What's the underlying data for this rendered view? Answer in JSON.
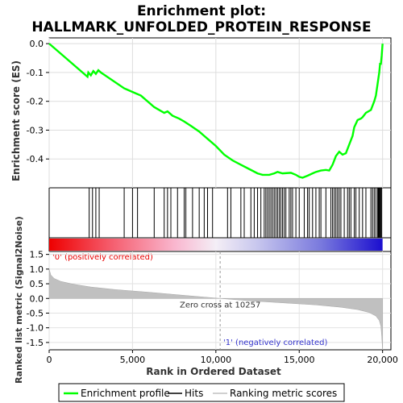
{
  "chart_data": {
    "type": "line",
    "title_line1": "Enrichment plot:",
    "title_line2": "HALLMARK_UNFOLDED_PROTEIN_RESPONSE",
    "top_panel": {
      "ylabel": "Enrichment score (ES)",
      "ylim": [
        -0.5,
        0.02
      ],
      "yticks": [
        0.0,
        -0.1,
        -0.2,
        -0.3,
        -0.4
      ],
      "ytick_labels": [
        "0.0",
        "-0.1",
        "-0.2",
        "-0.3",
        "-0.4"
      ],
      "series_name": "Enrichment profile",
      "color": "#00ff00",
      "x": [
        0,
        2300,
        2350,
        2500,
        2650,
        2800,
        2950,
        3100,
        4500,
        4700,
        5100,
        5500,
        6300,
        6900,
        7100,
        7400,
        7800,
        8100,
        8500,
        9000,
        9500,
        10000,
        10500,
        11000,
        11500,
        12000,
        12500,
        12800,
        13200,
        13500,
        13700,
        14000,
        14500,
        14800,
        15000,
        15200,
        15500,
        15800,
        16000,
        16300,
        16600,
        16800,
        17000,
        17200,
        17400,
        17600,
        17800,
        18000,
        18200,
        18300,
        18500,
        18700,
        18800,
        19000,
        19300,
        19500,
        19600,
        19700,
        19800,
        19850,
        19900,
        19950,
        20000
      ],
      "y": [
        0.0,
        -0.115,
        -0.1,
        -0.11,
        -0.095,
        -0.105,
        -0.092,
        -0.1,
        -0.155,
        -0.16,
        -0.17,
        -0.18,
        -0.22,
        -0.24,
        -0.235,
        -0.25,
        -0.26,
        -0.27,
        -0.285,
        -0.305,
        -0.33,
        -0.355,
        -0.385,
        -0.405,
        -0.42,
        -0.435,
        -0.45,
        -0.455,
        -0.455,
        -0.45,
        -0.445,
        -0.45,
        -0.448,
        -0.455,
        -0.462,
        -0.465,
        -0.458,
        -0.45,
        -0.445,
        -0.44,
        -0.438,
        -0.44,
        -0.42,
        -0.39,
        -0.375,
        -0.385,
        -0.38,
        -0.35,
        -0.32,
        -0.29,
        -0.265,
        -0.26,
        -0.255,
        -0.24,
        -0.23,
        -0.2,
        -0.18,
        -0.14,
        -0.1,
        -0.07,
        -0.07,
        -0.04,
        0.0
      ]
    },
    "hits": [
      2400,
      2600,
      2800,
      3000,
      4500,
      5000,
      5300,
      6300,
      6900,
      7100,
      7300,
      7700,
      8100,
      8200,
      8600,
      9000,
      9300,
      9500,
      9800,
      10700,
      10900,
      11500,
      11700,
      12100,
      12300,
      12500,
      12700,
      12900,
      13000,
      13100,
      13200,
      13300,
      13400,
      13500,
      13600,
      13700,
      13800,
      13900,
      14000,
      14100,
      14200,
      14400,
      14500,
      14600,
      14800,
      15000,
      15300,
      15500,
      15600,
      15800,
      16000,
      16200,
      16300,
      16600,
      16900,
      17000,
      17100,
      17200,
      17300,
      17400,
      17500,
      17700,
      17900,
      18000,
      18100,
      18300,
      18400,
      18600,
      18800,
      19000,
      19300,
      19400,
      19500,
      19600,
      19700,
      19750,
      19800,
      19850,
      19900,
      19950
    ],
    "bottom_panel": {
      "ylabel": "Ranked list metric (Signal2Noise)",
      "ylim": [
        -1.75,
        1.6
      ],
      "yticks": [
        1.5,
        1.0,
        0.5,
        0.0,
        -0.5,
        -1.0,
        -1.5
      ],
      "ytick_labels": [
        "1.5",
        "1.0",
        "0.5",
        "0.0",
        "-0.5",
        "-1.0",
        "-1.5"
      ],
      "series_name": "Ranking metric scores",
      "color": "#c0c0c0",
      "x": [
        0,
        100,
        300,
        700,
        1500,
        2500,
        4000,
        6000,
        8000,
        10257,
        12000,
        14000,
        16000,
        17500,
        18500,
        19200,
        19600,
        19800,
        19900,
        19950,
        20000
      ],
      "y": [
        1.0,
        0.8,
        0.68,
        0.58,
        0.48,
        0.39,
        0.3,
        0.21,
        0.11,
        0.0,
        -0.08,
        -0.15,
        -0.22,
        -0.3,
        -0.38,
        -0.48,
        -0.6,
        -0.75,
        -0.95,
        -1.3,
        -1.75
      ],
      "zero_cross_label": "Zero cross at 10257",
      "zero_cross": 10257,
      "pos_label": "'0' (positively correlated)",
      "neg_label": "'1' (negatively correlated)"
    },
    "xlabel": "Rank in Ordered Dataset",
    "xlim": [
      0,
      20500
    ],
    "xticks": [
      0,
      5000,
      10000,
      15000,
      20000
    ],
    "xtick_labels": [
      "0",
      "5,000",
      "10,000",
      "15,000",
      "20,000"
    ],
    "legend": {
      "placement": "bottom",
      "items": [
        {
          "label": "Enrichment profile",
          "color": "#00ff00"
        },
        {
          "label": "Hits",
          "color": "#000000"
        },
        {
          "label": "Ranking metric scores",
          "color": "#c0c0c0"
        }
      ]
    }
  }
}
